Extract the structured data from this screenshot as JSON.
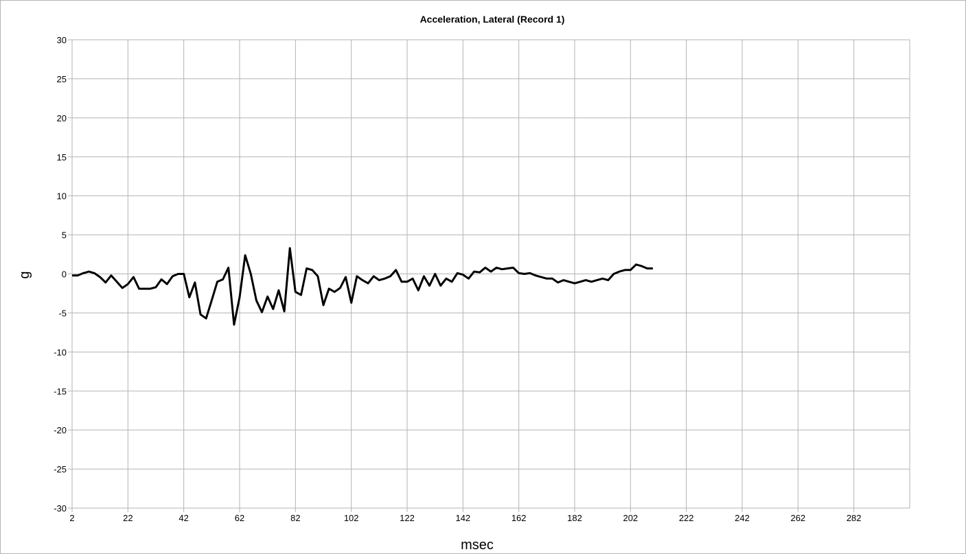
{
  "chart_data": {
    "type": "line",
    "title": "Acceleration, Lateral (Record 1)",
    "xlabel": "msec",
    "ylabel": "g",
    "xlim": [
      2,
      302
    ],
    "ylim": [
      -30,
      30
    ],
    "x_ticks": [
      2,
      22,
      42,
      62,
      82,
      102,
      122,
      142,
      162,
      182,
      202,
      222,
      242,
      262,
      282
    ],
    "y_ticks": [
      30,
      25,
      20,
      15,
      10,
      5,
      0,
      -5,
      -10,
      -15,
      -20,
      -25,
      -30
    ],
    "grid": true,
    "legend": "none",
    "line_color": "#000000",
    "series": [
      {
        "x": [
          2,
          4,
          6,
          8,
          10,
          12,
          14,
          16,
          18,
          20,
          22,
          24,
          26,
          28,
          30,
          32,
          34,
          36,
          38,
          40,
          42,
          44,
          46,
          48,
          50,
          52,
          54,
          56,
          58,
          60,
          62,
          64,
          66,
          68,
          70,
          72,
          74,
          76,
          78,
          80,
          82,
          84,
          86,
          88,
          90,
          92,
          94,
          96,
          98,
          100,
          102,
          104,
          106,
          108,
          110,
          112,
          114,
          116,
          118,
          120,
          122,
          124,
          126,
          128,
          130,
          132,
          134,
          136,
          138,
          140,
          142,
          144,
          146,
          148,
          150,
          152,
          154,
          156,
          158,
          160,
          162,
          164,
          166,
          168,
          170,
          172,
          174,
          176,
          178,
          180,
          182,
          184,
          186,
          188,
          190,
          192,
          194,
          196,
          198,
          200,
          202,
          204,
          206,
          208,
          210
        ],
        "y": [
          -0.2,
          -0.2,
          0.1,
          0.3,
          0.1,
          -0.4,
          -1.1,
          -0.2,
          -1.0,
          -1.8,
          -1.3,
          -0.4,
          -1.9,
          -1.9,
          -1.9,
          -1.7,
          -0.7,
          -1.3,
          -0.3,
          0.0,
          0.0,
          -3.0,
          -1.1,
          -5.2,
          -5.7,
          -3.4,
          -1.0,
          -0.7,
          0.8,
          -6.5,
          -3.0,
          2.4,
          0.0,
          -3.4,
          -4.9,
          -2.9,
          -4.5,
          -2.1,
          -4.8,
          3.3,
          -2.3,
          -2.7,
          0.7,
          0.5,
          -0.3,
          -4.0,
          -1.9,
          -2.3,
          -1.8,
          -0.4,
          -3.7,
          -0.3,
          -0.8,
          -1.2,
          -0.3,
          -0.8,
          -0.6,
          -0.3,
          0.5,
          -1.0,
          -1.0,
          -0.6,
          -2.1,
          -0.3,
          -1.5,
          0.0,
          -1.5,
          -0.6,
          -1.0,
          0.1,
          -0.1,
          -0.6,
          0.3,
          0.2,
          0.8,
          0.3,
          0.8,
          0.6,
          0.7,
          0.8,
          0.1,
          0.0,
          0.1,
          -0.2,
          -0.4,
          -0.6,
          -0.6,
          -1.1,
          -0.8,
          -1.0,
          -1.2,
          -1.0,
          -0.8,
          -1.0,
          -0.8,
          -0.6,
          -0.8,
          0.0,
          0.3,
          0.5,
          0.5,
          1.2,
          1.0,
          0.7,
          0.7
        ]
      }
    ]
  }
}
